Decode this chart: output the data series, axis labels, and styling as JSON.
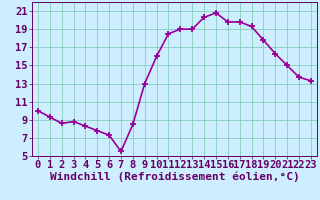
{
  "hours": [
    0,
    1,
    2,
    3,
    4,
    5,
    6,
    7,
    8,
    9,
    10,
    11,
    12,
    13,
    14,
    15,
    16,
    17,
    18,
    19,
    20,
    21,
    22,
    23
  ],
  "values": [
    10.0,
    9.3,
    8.6,
    8.8,
    8.3,
    7.8,
    7.3,
    5.5,
    8.5,
    13.0,
    16.0,
    18.5,
    19.0,
    19.0,
    20.3,
    20.8,
    19.8,
    19.8,
    19.3,
    17.8,
    16.3,
    15.0,
    13.7,
    13.3
  ],
  "line_color": "#990099",
  "marker": "+",
  "bg_color": "#cceeff",
  "grid_color": "#88ccbb",
  "xlabel": "Windchill (Refroidissement éolien,°C)",
  "ylim": [
    5,
    22
  ],
  "xlim": [
    -0.5,
    23.5
  ],
  "yticks": [
    5,
    7,
    9,
    11,
    13,
    15,
    17,
    19,
    21
  ],
  "xticks": [
    0,
    1,
    2,
    3,
    4,
    5,
    6,
    7,
    8,
    9,
    10,
    11,
    12,
    13,
    14,
    15,
    16,
    17,
    18,
    19,
    20,
    21,
    22,
    23
  ],
  "xlabel_fontsize": 8,
  "tick_fontsize": 7.5,
  "xlabel_color": "#660066",
  "tick_color": "#660066",
  "spine_color": "#660066",
  "line_width": 1.2,
  "marker_size": 4.5
}
